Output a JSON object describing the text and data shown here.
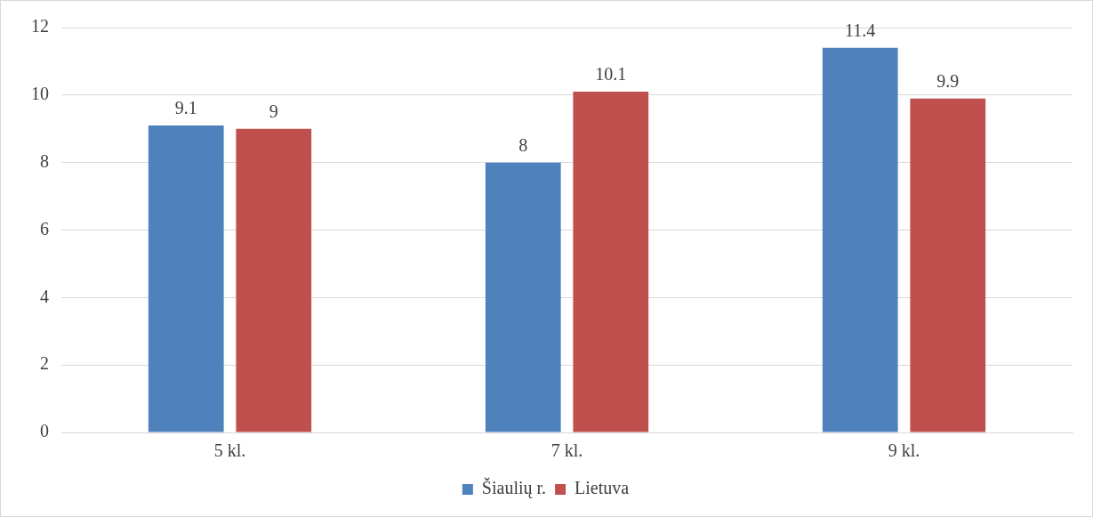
{
  "chart_data": {
    "type": "bar",
    "categories": [
      "5 kl.",
      "7 kl.",
      "9 kl."
    ],
    "series": [
      {
        "name": "Šiaulių r.",
        "color": "#4f81bd",
        "values": [
          9.1,
          8,
          11.4
        ]
      },
      {
        "name": "Lietuva",
        "color": "#c0504d",
        "values": [
          9,
          10.1,
          9.9
        ]
      }
    ],
    "ylim": [
      0,
      12
    ],
    "yticks": [
      0,
      2,
      4,
      6,
      8,
      10,
      12
    ],
    "grid": "y",
    "legend": "bottom",
    "data_labels": true
  }
}
